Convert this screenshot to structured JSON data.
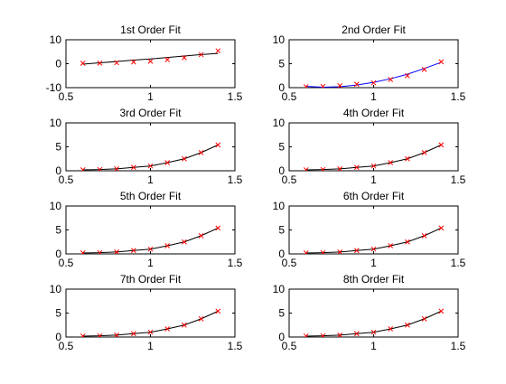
{
  "chart_data": [
    {
      "type": "line",
      "title": "1st Order Fit",
      "xlabel": "",
      "ylabel": "",
      "xlim": [
        0.5,
        1.5
      ],
      "ylim": [
        -10,
        10
      ],
      "xticks": [
        0.5,
        1,
        1.5
      ],
      "xtick_labels": [
        "0.5",
        "1",
        "1.5"
      ],
      "yticks": [
        -10,
        0,
        10
      ],
      "ytick_labels": [
        "-10",
        "0",
        "10"
      ],
      "grid": false,
      "series": [
        {
          "kind": "line",
          "color": "#000000",
          "x": [
            0.6,
            0.7,
            0.8,
            0.9,
            1.0,
            1.1,
            1.2,
            1.3,
            1.4
          ],
          "y": [
            -0.2,
            0.4,
            0.9,
            1.5,
            2.0,
            2.6,
            3.2,
            3.8,
            4.3
          ]
        },
        {
          "kind": "scatter",
          "marker": "x",
          "color": "#ff0000",
          "x": [
            0.6,
            0.7,
            0.8,
            0.9,
            1.0,
            1.1,
            1.2,
            1.3,
            1.4
          ],
          "y": [
            0.2,
            0.25,
            0.4,
            0.7,
            1.0,
            1.7,
            2.5,
            3.8,
            5.4
          ]
        }
      ]
    },
    {
      "type": "line",
      "title": "2nd Order Fit",
      "xlabel": "",
      "ylabel": "",
      "xlim": [
        0.5,
        1.5
      ],
      "ylim": [
        0,
        10
      ],
      "xticks": [
        0.5,
        1,
        1.5
      ],
      "xtick_labels": [
        "0.5",
        "1",
        "1.5"
      ],
      "yticks": [
        0,
        5,
        10
      ],
      "ytick_labels": [
        "0",
        "5",
        "10"
      ],
      "grid": false,
      "series": [
        {
          "kind": "line",
          "color": "#0000ff",
          "x": [
            0.6,
            0.7,
            0.8,
            0.9,
            1.0,
            1.1,
            1.2,
            1.3,
            1.4
          ],
          "y": [
            0.25,
            0.1,
            0.2,
            0.55,
            1.1,
            1.85,
            2.8,
            4.0,
            5.3
          ]
        },
        {
          "kind": "scatter",
          "marker": "x",
          "color": "#ff0000",
          "x": [
            0.6,
            0.7,
            0.8,
            0.9,
            1.0,
            1.1,
            1.2,
            1.3,
            1.4
          ],
          "y": [
            0.2,
            0.25,
            0.4,
            0.7,
            1.0,
            1.7,
            2.5,
            3.8,
            5.4
          ]
        }
      ]
    },
    {
      "type": "line",
      "title": "3rd Order Fit",
      "xlabel": "",
      "ylabel": "",
      "xlim": [
        0.5,
        1.5
      ],
      "ylim": [
        0,
        10
      ],
      "xticks": [
        0.5,
        1,
        1.5
      ],
      "xtick_labels": [
        "0.5",
        "1",
        "1.5"
      ],
      "yticks": [
        0,
        5,
        10
      ],
      "ytick_labels": [
        "0",
        "5",
        "10"
      ],
      "grid": false,
      "series": [
        {
          "kind": "line",
          "color": "#000000",
          "x": [
            0.6,
            0.7,
            0.8,
            0.9,
            1.0,
            1.1,
            1.2,
            1.3,
            1.4
          ],
          "y": [
            0.2,
            0.25,
            0.4,
            0.7,
            1.0,
            1.7,
            2.5,
            3.8,
            5.4
          ]
        },
        {
          "kind": "scatter",
          "marker": "x",
          "color": "#ff0000",
          "x": [
            0.6,
            0.7,
            0.8,
            0.9,
            1.0,
            1.1,
            1.2,
            1.3,
            1.4
          ],
          "y": [
            0.2,
            0.25,
            0.4,
            0.7,
            1.0,
            1.7,
            2.5,
            3.8,
            5.4
          ]
        }
      ]
    },
    {
      "type": "line",
      "title": "4th Order Fit",
      "xlabel": "",
      "ylabel": "",
      "xlim": [
        0.5,
        1.5
      ],
      "ylim": [
        0,
        10
      ],
      "xticks": [
        0.5,
        1,
        1.5
      ],
      "xtick_labels": [
        "0.5",
        "1",
        "1.5"
      ],
      "yticks": [
        0,
        5,
        10
      ],
      "ytick_labels": [
        "0",
        "5",
        "10"
      ],
      "grid": false,
      "series": [
        {
          "kind": "line",
          "color": "#000000",
          "x": [
            0.6,
            0.7,
            0.8,
            0.9,
            1.0,
            1.1,
            1.2,
            1.3,
            1.4
          ],
          "y": [
            0.2,
            0.25,
            0.4,
            0.7,
            1.0,
            1.7,
            2.5,
            3.8,
            5.4
          ]
        },
        {
          "kind": "scatter",
          "marker": "x",
          "color": "#ff0000",
          "x": [
            0.6,
            0.7,
            0.8,
            0.9,
            1.0,
            1.1,
            1.2,
            1.3,
            1.4
          ],
          "y": [
            0.2,
            0.25,
            0.4,
            0.7,
            1.0,
            1.7,
            2.5,
            3.8,
            5.4
          ]
        }
      ]
    },
    {
      "type": "line",
      "title": "5th Order Fit",
      "xlabel": "",
      "ylabel": "",
      "xlim": [
        0.5,
        1.5
      ],
      "ylim": [
        0,
        10
      ],
      "xticks": [
        0.5,
        1,
        1.5
      ],
      "xtick_labels": [
        "0.5",
        "1",
        "1.5"
      ],
      "yticks": [
        0,
        5,
        10
      ],
      "ytick_labels": [
        "0",
        "5",
        "10"
      ],
      "grid": false,
      "series": [
        {
          "kind": "line",
          "color": "#000000",
          "x": [
            0.6,
            0.7,
            0.8,
            0.9,
            1.0,
            1.1,
            1.2,
            1.3,
            1.4
          ],
          "y": [
            0.2,
            0.25,
            0.4,
            0.7,
            1.0,
            1.7,
            2.5,
            3.8,
            5.4
          ]
        },
        {
          "kind": "scatter",
          "marker": "x",
          "color": "#ff0000",
          "x": [
            0.6,
            0.7,
            0.8,
            0.9,
            1.0,
            1.1,
            1.2,
            1.3,
            1.4
          ],
          "y": [
            0.2,
            0.25,
            0.4,
            0.7,
            1.0,
            1.7,
            2.5,
            3.8,
            5.4
          ]
        }
      ]
    },
    {
      "type": "line",
      "title": "6th Order Fit",
      "xlabel": "",
      "ylabel": "",
      "xlim": [
        0.5,
        1.5
      ],
      "ylim": [
        0,
        10
      ],
      "xticks": [
        0.5,
        1,
        1.5
      ],
      "xtick_labels": [
        "0.5",
        "1",
        "1.5"
      ],
      "yticks": [
        0,
        5,
        10
      ],
      "ytick_labels": [
        "0",
        "5",
        "10"
      ],
      "grid": false,
      "series": [
        {
          "kind": "line",
          "color": "#000000",
          "x": [
            0.6,
            0.7,
            0.8,
            0.9,
            1.0,
            1.1,
            1.2,
            1.3,
            1.4
          ],
          "y": [
            0.2,
            0.25,
            0.4,
            0.7,
            1.0,
            1.7,
            2.5,
            3.8,
            5.4
          ]
        },
        {
          "kind": "scatter",
          "marker": "x",
          "color": "#ff0000",
          "x": [
            0.6,
            0.7,
            0.8,
            0.9,
            1.0,
            1.1,
            1.2,
            1.3,
            1.4
          ],
          "y": [
            0.2,
            0.25,
            0.4,
            0.7,
            1.0,
            1.7,
            2.5,
            3.8,
            5.4
          ]
        }
      ]
    },
    {
      "type": "line",
      "title": "7th Order Fit",
      "xlabel": "",
      "ylabel": "",
      "xlim": [
        0.5,
        1.5
      ],
      "ylim": [
        0,
        10
      ],
      "xticks": [
        0.5,
        1,
        1.5
      ],
      "xtick_labels": [
        "0.5",
        "1",
        "1.5"
      ],
      "yticks": [
        0,
        5,
        10
      ],
      "ytick_labels": [
        "0",
        "5",
        "10"
      ],
      "grid": false,
      "series": [
        {
          "kind": "line",
          "color": "#000000",
          "x": [
            0.6,
            0.7,
            0.8,
            0.9,
            1.0,
            1.1,
            1.2,
            1.3,
            1.4
          ],
          "y": [
            0.2,
            0.25,
            0.4,
            0.7,
            1.0,
            1.7,
            2.5,
            3.8,
            5.4
          ]
        },
        {
          "kind": "scatter",
          "marker": "x",
          "color": "#ff0000",
          "x": [
            0.6,
            0.7,
            0.8,
            0.9,
            1.0,
            1.1,
            1.2,
            1.3,
            1.4
          ],
          "y": [
            0.2,
            0.25,
            0.4,
            0.7,
            1.0,
            1.7,
            2.5,
            3.8,
            5.4
          ]
        }
      ]
    },
    {
      "type": "line",
      "title": "8th Order Fit",
      "xlabel": "",
      "ylabel": "",
      "xlim": [
        0.5,
        1.5
      ],
      "ylim": [
        0,
        10
      ],
      "xticks": [
        0.5,
        1,
        1.5
      ],
      "xtick_labels": [
        "0.5",
        "1",
        "1.5"
      ],
      "yticks": [
        0,
        5,
        10
      ],
      "ytick_labels": [
        "0",
        "5",
        "10"
      ],
      "grid": false,
      "series": [
        {
          "kind": "line",
          "color": "#000000",
          "x": [
            0.6,
            0.7,
            0.8,
            0.9,
            1.0,
            1.1,
            1.2,
            1.3,
            1.4
          ],
          "y": [
            0.2,
            0.25,
            0.4,
            0.7,
            1.0,
            1.7,
            2.5,
            3.8,
            5.4
          ]
        },
        {
          "kind": "scatter",
          "marker": "x",
          "color": "#ff0000",
          "x": [
            0.6,
            0.7,
            0.8,
            0.9,
            1.0,
            1.1,
            1.2,
            1.3,
            1.4
          ],
          "y": [
            0.2,
            0.25,
            0.4,
            0.7,
            1.0,
            1.7,
            2.5,
            3.8,
            5.4
          ]
        }
      ]
    }
  ]
}
